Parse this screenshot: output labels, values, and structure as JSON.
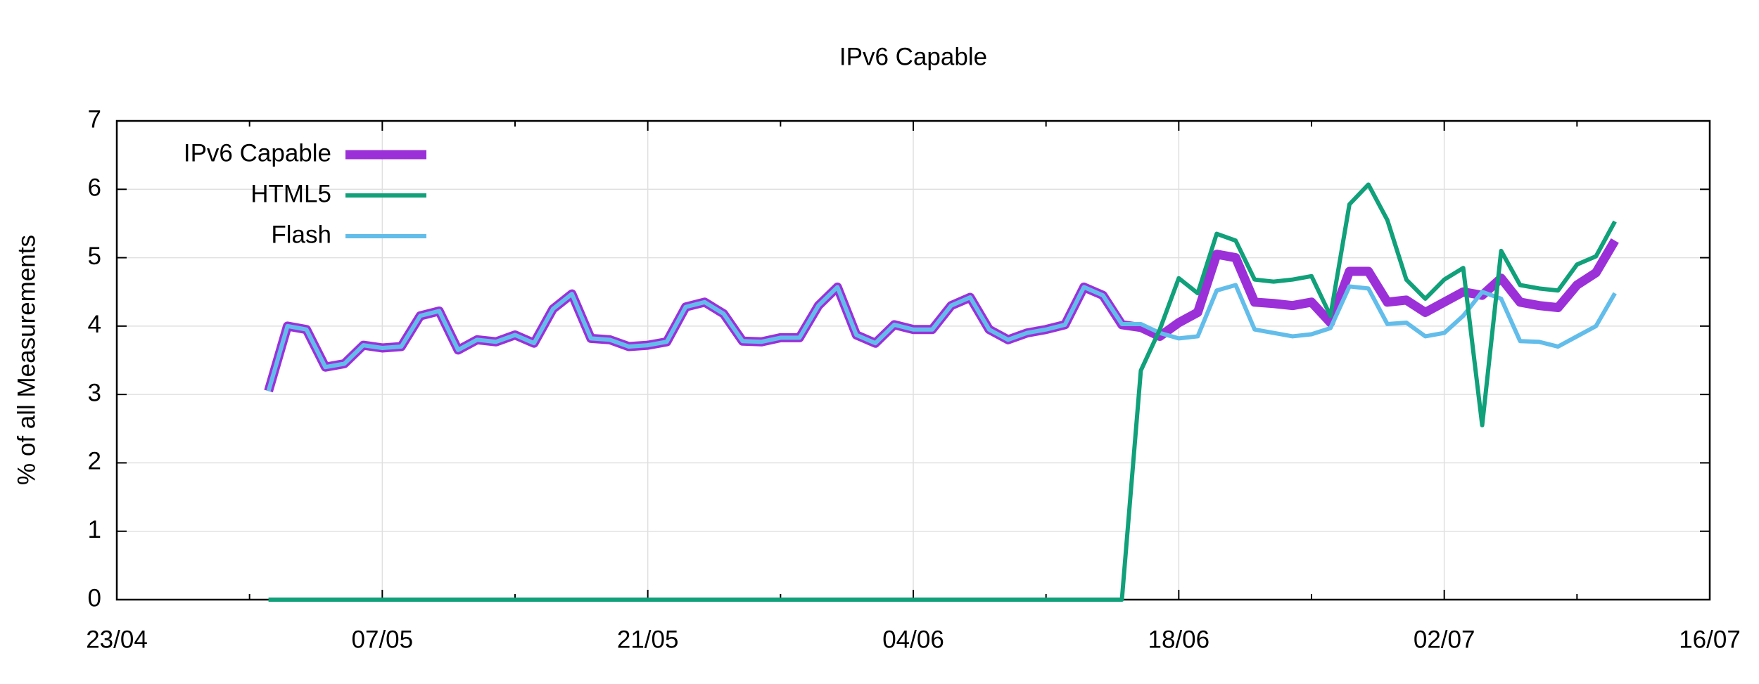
{
  "chart_data": {
    "type": "line",
    "title": "IPv6 Capable",
    "ylabel": "% of all Measurements",
    "x": [
      "01/05",
      "02/05",
      "03/05",
      "04/05",
      "05/05",
      "06/05",
      "07/05",
      "08/05",
      "09/05",
      "10/05",
      "11/05",
      "12/05",
      "13/05",
      "14/05",
      "15/05",
      "16/05",
      "17/05",
      "18/05",
      "19/05",
      "20/05",
      "21/05",
      "22/05",
      "23/05",
      "24/05",
      "25/05",
      "26/05",
      "27/05",
      "28/05",
      "29/05",
      "30/05",
      "31/05",
      "01/06",
      "02/06",
      "03/06",
      "04/06",
      "05/06",
      "06/06",
      "07/06",
      "08/06",
      "09/06",
      "10/06",
      "11/06",
      "12/06",
      "13/06",
      "14/06",
      "15/06",
      "16/06",
      "17/06",
      "18/06",
      "19/06",
      "20/06",
      "21/06",
      "22/06",
      "23/06",
      "24/06",
      "25/06",
      "26/06",
      "27/06",
      "28/06",
      "29/06",
      "30/06",
      "01/07",
      "02/07",
      "03/07",
      "04/07",
      "05/07",
      "06/07",
      "07/07",
      "08/07",
      "09/07",
      "10/07",
      "11/07"
    ],
    "series": [
      {
        "name": "IPv6 Capable",
        "color": "#9b30d9",
        "values": [
          3.05,
          4.0,
          3.95,
          3.4,
          3.45,
          3.72,
          3.68,
          3.7,
          4.15,
          4.22,
          3.65,
          3.8,
          3.77,
          3.87,
          3.75,
          4.25,
          4.47,
          3.82,
          3.8,
          3.7,
          3.72,
          3.77,
          4.28,
          4.35,
          4.18,
          3.78,
          3.77,
          3.83,
          3.83,
          4.3,
          4.57,
          3.87,
          3.75,
          4.02,
          3.95,
          3.95,
          4.3,
          4.42,
          3.95,
          3.8,
          3.9,
          3.95,
          4.02,
          4.57,
          4.45,
          4.02,
          3.98,
          3.85,
          4.05,
          4.2,
          5.05,
          5.0,
          4.35,
          4.33,
          4.3,
          4.35,
          4.05,
          4.8,
          4.8,
          4.35,
          4.38,
          4.2,
          4.35,
          4.5,
          4.45,
          4.7,
          4.35,
          4.3,
          4.27,
          4.6,
          4.78,
          5.25
        ]
      },
      {
        "name": "HTML5",
        "color": "#10a07a",
        "values": [
          0,
          0,
          0,
          0,
          0,
          0,
          0,
          0,
          0,
          0,
          0,
          0,
          0,
          0,
          0,
          0,
          0,
          0,
          0,
          0,
          0,
          0,
          0,
          0,
          0,
          0,
          0,
          0,
          0,
          0,
          0,
          0,
          0,
          0,
          0,
          0,
          0,
          0,
          0,
          0,
          0,
          0,
          0,
          0,
          0,
          0,
          3.35,
          3.95,
          4.7,
          4.48,
          5.35,
          5.25,
          4.68,
          4.65,
          4.68,
          4.73,
          4.15,
          5.78,
          6.07,
          5.55,
          4.68,
          4.4,
          4.68,
          4.85,
          2.55,
          5.1,
          4.6,
          4.55,
          4.52,
          4.9,
          5.02,
          5.53
        ]
      },
      {
        "name": "Flash",
        "color": "#62bdea",
        "values": [
          3.05,
          4.0,
          3.95,
          3.4,
          3.45,
          3.72,
          3.68,
          3.7,
          4.15,
          4.22,
          3.65,
          3.8,
          3.77,
          3.87,
          3.75,
          4.25,
          4.47,
          3.82,
          3.8,
          3.7,
          3.72,
          3.77,
          4.28,
          4.35,
          4.18,
          3.78,
          3.77,
          3.83,
          3.83,
          4.3,
          4.57,
          3.87,
          3.75,
          4.02,
          3.95,
          3.95,
          4.3,
          4.42,
          3.95,
          3.8,
          3.9,
          3.95,
          4.02,
          4.57,
          4.45,
          4.03,
          4.03,
          3.9,
          3.82,
          3.85,
          4.52,
          4.6,
          3.95,
          3.9,
          3.85,
          3.88,
          3.97,
          4.58,
          4.55,
          4.03,
          4.05,
          3.85,
          3.9,
          4.15,
          4.5,
          4.4,
          3.78,
          3.77,
          3.7,
          3.85,
          4.0,
          4.48
        ]
      }
    ],
    "xlim": [
      "23/04",
      "16/07"
    ],
    "xticks": [
      "23/04",
      "07/05",
      "21/05",
      "04/06",
      "18/06",
      "02/07",
      "16/07"
    ],
    "ylim": [
      0,
      7
    ],
    "yticks": [
      0,
      1,
      2,
      3,
      4,
      5,
      6,
      7
    ],
    "grid": true,
    "legend": "top-left"
  }
}
